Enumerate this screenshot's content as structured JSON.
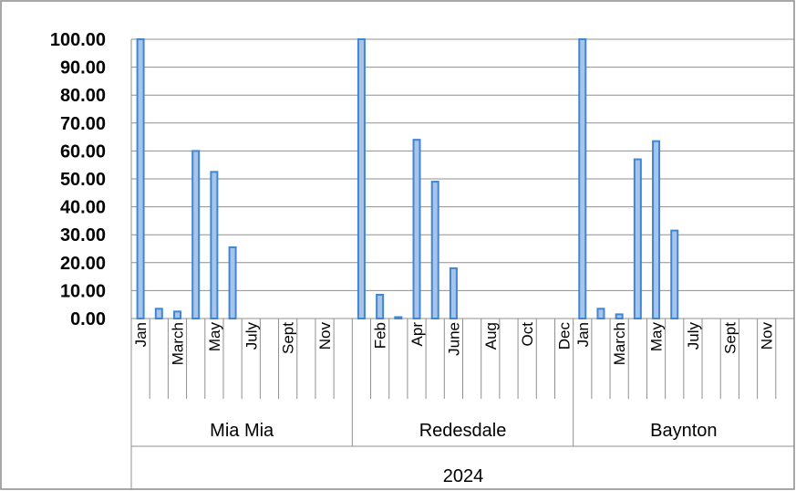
{
  "chart_data": {
    "type": "bar",
    "year": "2024",
    "ylim": [
      0,
      100
    ],
    "yticks": [
      "0.00",
      "10.00",
      "20.00",
      "30.00",
      "40.00",
      "50.00",
      "60.00",
      "70.00",
      "80.00",
      "90.00",
      "100.00"
    ],
    "grid": true,
    "legend": "none",
    "groups": [
      {
        "name": "Mia Mia",
        "months": [
          "Jan",
          "",
          "March",
          "",
          "May",
          "",
          "July",
          "",
          "Sept",
          "",
          "Nov",
          ""
        ],
        "values": [
          100,
          3.5,
          2.5,
          60,
          52.5,
          25.5,
          0,
          0,
          0,
          0,
          0,
          0
        ]
      },
      {
        "name": "Redesdale",
        "months": [
          "",
          "Feb",
          "",
          "Apr",
          "",
          "June",
          "",
          "Aug",
          "",
          "Oct",
          "",
          "Dec"
        ],
        "values": [
          100,
          8.5,
          0.5,
          64,
          49,
          18,
          0,
          0,
          0,
          0,
          0,
          0
        ]
      },
      {
        "name": "Baynton",
        "months": [
          "Jan",
          "",
          "March",
          "",
          "May",
          "",
          "July",
          "",
          "Sept",
          "",
          "Nov",
          ""
        ],
        "values": [
          100,
          3.5,
          1.5,
          57,
          63.5,
          31.5,
          0,
          0,
          0,
          0,
          0,
          0
        ]
      }
    ]
  }
}
